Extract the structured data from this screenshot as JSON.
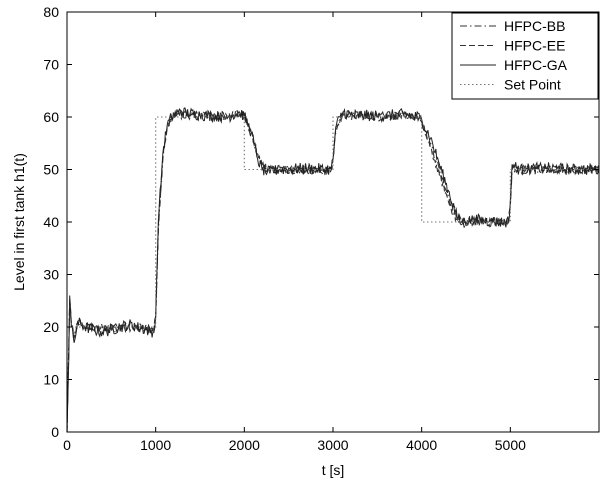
{
  "chart_data": {
    "type": "line",
    "title": "",
    "xlabel": "t [s]",
    "ylabel": "Level in first tank h1(t)",
    "xlim": [
      0,
      6000
    ],
    "ylim": [
      0,
      80
    ],
    "xticks": [
      0,
      1000,
      2000,
      3000,
      4000,
      5000
    ],
    "yticks": [
      0,
      10,
      20,
      30,
      40,
      50,
      60,
      70,
      80
    ],
    "grid": false,
    "legend_position": "top-right",
    "series": [
      {
        "name": "HFPC-BB",
        "style": "dashdot",
        "color": "#333333",
        "noise_amplitude": 0.8,
        "x": [
          0,
          30,
          50,
          80,
          120,
          200,
          400,
          700,
          980,
          1000,
          1030,
          1080,
          1130,
          1180,
          1250,
          1500,
          1800,
          1950,
          2000,
          2080,
          2150,
          2200,
          2260,
          2400,
          2700,
          2980,
          3000,
          3030,
          3080,
          3120,
          3200,
          3500,
          3800,
          3980,
          4000,
          4100,
          4200,
          4300,
          4400,
          4450,
          4600,
          4800,
          4980,
          5000,
          5020,
          5100,
          5400,
          5700,
          6000
        ],
        "y": [
          0,
          25,
          20,
          18,
          21,
          20,
          19.5,
          20,
          19.5,
          22,
          38,
          52,
          58,
          60,
          60.5,
          60.3,
          60.2,
          60.6,
          60,
          57,
          53,
          51,
          50,
          50,
          49.8,
          50,
          52,
          57,
          59.5,
          60.5,
          60.2,
          60.1,
          60.3,
          60,
          59,
          55,
          50,
          45,
          41,
          40,
          40.3,
          40.1,
          40,
          43,
          50,
          50,
          50.2,
          50,
          50
        ]
      },
      {
        "name": "HFPC-EE",
        "style": "dashed",
        "color": "#333333",
        "noise_amplitude": 0.8,
        "x": [
          0,
          30,
          50,
          80,
          120,
          200,
          400,
          700,
          980,
          1000,
          1030,
          1080,
          1130,
          1180,
          1250,
          1500,
          1800,
          1950,
          2000,
          2080,
          2150,
          2200,
          2260,
          2400,
          2700,
          2980,
          3000,
          3030,
          3080,
          3120,
          3200,
          3500,
          3800,
          3980,
          4000,
          4100,
          4200,
          4300,
          4400,
          4450,
          4600,
          4800,
          4980,
          5000,
          5020,
          5100,
          5400,
          5700,
          6000
        ],
        "y": [
          0,
          25.5,
          20.5,
          18,
          21,
          20,
          19.8,
          20.1,
          19.6,
          22,
          39,
          52,
          58,
          60,
          60.6,
          60.2,
          60.3,
          60.5,
          60,
          57,
          53,
          51,
          50,
          50.1,
          49.9,
          50,
          52,
          57.5,
          59.5,
          60.5,
          60.3,
          60,
          60.2,
          60,
          59,
          54,
          49,
          44,
          40,
          39.5,
          40.2,
          40,
          40,
          43,
          50.5,
          50,
          50.1,
          49.9,
          50
        ]
      },
      {
        "name": "HFPC-GA",
        "style": "solid",
        "color": "#222222",
        "noise_amplitude": 1.1,
        "x": [
          0,
          20,
          30,
          50,
          80,
          120,
          200,
          400,
          700,
          980,
          1000,
          1030,
          1080,
          1130,
          1180,
          1250,
          1500,
          1800,
          1950,
          2000,
          2080,
          2150,
          2200,
          2260,
          2400,
          2700,
          2980,
          3000,
          3030,
          3080,
          3120,
          3200,
          3500,
          3800,
          3980,
          4000,
          4100,
          4200,
          4300,
          4400,
          4450,
          4600,
          4800,
          4980,
          5000,
          5020,
          5100,
          5400,
          5700,
          6000
        ],
        "y": [
          0,
          14,
          26,
          20,
          17,
          21,
          20,
          19,
          20.5,
          19,
          22,
          40,
          53,
          58.5,
          60,
          61,
          60.4,
          60,
          60.8,
          60.2,
          57,
          52,
          50,
          49.5,
          50,
          50.2,
          50,
          52,
          58,
          60,
          61,
          60.4,
          60.2,
          60.5,
          60,
          59.5,
          56,
          51,
          46,
          41,
          40,
          40.5,
          40,
          40,
          44,
          51,
          50,
          50.3,
          50,
          50
        ]
      },
      {
        "name": "Set Point",
        "style": "dotted",
        "color": "#777777",
        "noise_amplitude": 0,
        "x": [
          0,
          1000,
          1000,
          2000,
          2000,
          3000,
          3000,
          4000,
          4000,
          5000,
          5000,
          6000
        ],
        "y": [
          20,
          20,
          60,
          60,
          50,
          50,
          60,
          60,
          40,
          40,
          50,
          50
        ]
      }
    ]
  }
}
